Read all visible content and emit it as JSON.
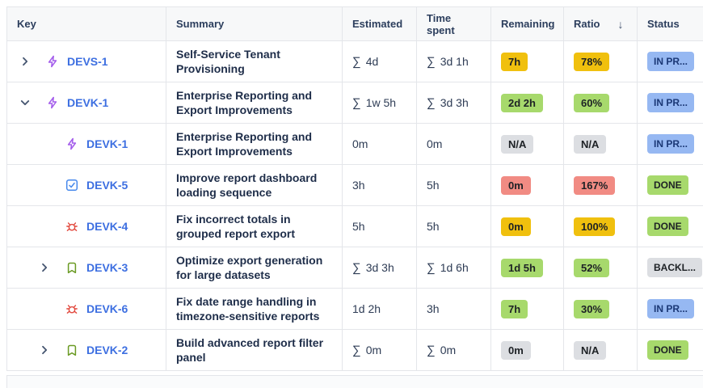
{
  "glyphs": {
    "sum": "∑",
    "sort_desc": "↓"
  },
  "palette": {
    "link": "#3D6FE1",
    "badges": {
      "yellow": {
        "bg": "#F0C00E",
        "fg": "#1D2125"
      },
      "green": {
        "bg": "#A7D96C",
        "fg": "#1D2125"
      },
      "red": {
        "bg": "#F18B83",
        "fg": "#1D2125"
      },
      "gray": {
        "bg": "#DCDEE2",
        "fg": "#1D2125"
      },
      "blue": {
        "bg": "#96B8F2",
        "fg": "#1B3876"
      }
    },
    "icons": {
      "epic": "#A35CEB",
      "task": "#4688EC",
      "bug": "#E2483D",
      "story": "#6A9A23",
      "chevron": "#44546F"
    }
  },
  "table": {
    "columns": [
      {
        "label": "Key"
      },
      {
        "label": "Summary"
      },
      {
        "label": "Estimated"
      },
      {
        "label": "Time spent"
      },
      {
        "label": "Remaining"
      },
      {
        "label": "Ratio",
        "sorted": "desc"
      },
      {
        "label": "Status"
      }
    ],
    "rows": [
      {
        "level": 0,
        "toggle": "collapsed",
        "type": "epic",
        "key": "DEVS-1",
        "summary": "Self-Service Tenant Provisioning",
        "estimated": {
          "sum": true,
          "value": "4d"
        },
        "spent": {
          "sum": true,
          "value": "3d 1h"
        },
        "remaining": {
          "text": "7h",
          "color": "yellow"
        },
        "ratio": {
          "text": "78%",
          "color": "yellow"
        },
        "status": {
          "text": "IN PR...",
          "color": "blue"
        }
      },
      {
        "level": 0,
        "toggle": "expanded",
        "type": "epic",
        "key": "DEVK-1",
        "summary": "Enterprise Reporting and Export Improvements",
        "estimated": {
          "sum": true,
          "value": "1w 5h"
        },
        "spent": {
          "sum": true,
          "value": "3d 3h"
        },
        "remaining": {
          "text": "2d 2h",
          "color": "green"
        },
        "ratio": {
          "text": "60%",
          "color": "green"
        },
        "status": {
          "text": "IN PR...",
          "color": "blue"
        }
      },
      {
        "level": 1,
        "toggle": null,
        "type": "epic",
        "key": "DEVK-1",
        "summary": "Enterprise Reporting and Export Improvements",
        "estimated": {
          "sum": false,
          "value": "0m"
        },
        "spent": {
          "sum": false,
          "value": "0m"
        },
        "remaining": {
          "text": "N/A",
          "color": "gray"
        },
        "ratio": {
          "text": "N/A",
          "color": "gray"
        },
        "status": {
          "text": "IN PR...",
          "color": "blue"
        }
      },
      {
        "level": 1,
        "toggle": null,
        "type": "task",
        "key": "DEVK-5",
        "summary": "Improve report dashboard loading sequence",
        "estimated": {
          "sum": false,
          "value": "3h"
        },
        "spent": {
          "sum": false,
          "value": "5h"
        },
        "remaining": {
          "text": "0m",
          "color": "red"
        },
        "ratio": {
          "text": "167%",
          "color": "red"
        },
        "status": {
          "text": "DONE",
          "color": "green"
        }
      },
      {
        "level": 1,
        "toggle": null,
        "type": "bug",
        "key": "DEVK-4",
        "summary": "Fix incorrect totals in grouped report export",
        "estimated": {
          "sum": false,
          "value": "5h"
        },
        "spent": {
          "sum": false,
          "value": "5h"
        },
        "remaining": {
          "text": "0m",
          "color": "yellow"
        },
        "ratio": {
          "text": "100%",
          "color": "yellow"
        },
        "status": {
          "text": "DONE",
          "color": "green"
        }
      },
      {
        "level": 1,
        "toggle": "collapsed",
        "type": "story",
        "key": "DEVK-3",
        "summary": "Optimize export generation for large datasets",
        "estimated": {
          "sum": true,
          "value": "3d 3h"
        },
        "spent": {
          "sum": true,
          "value": "1d 6h"
        },
        "remaining": {
          "text": "1d 5h",
          "color": "green"
        },
        "ratio": {
          "text": "52%",
          "color": "green"
        },
        "status": {
          "text": "BACKL...",
          "color": "gray"
        }
      },
      {
        "level": 1,
        "toggle": null,
        "type": "bug",
        "key": "DEVK-6",
        "summary": "Fix date range handling in timezone-sensitive reports",
        "estimated": {
          "sum": false,
          "value": "1d 2h"
        },
        "spent": {
          "sum": false,
          "value": "3h"
        },
        "remaining": {
          "text": "7h",
          "color": "green"
        },
        "ratio": {
          "text": "30%",
          "color": "green"
        },
        "status": {
          "text": "IN PR...",
          "color": "blue"
        }
      },
      {
        "level": 1,
        "toggle": "collapsed",
        "type": "story",
        "key": "DEVK-2",
        "summary": "Build advanced report filter panel",
        "estimated": {
          "sum": true,
          "value": "0m"
        },
        "spent": {
          "sum": true,
          "value": "0m"
        },
        "remaining": {
          "text": "0m",
          "color": "gray"
        },
        "ratio": {
          "text": "N/A",
          "color": "gray"
        },
        "status": {
          "text": "DONE",
          "color": "green"
        }
      }
    ]
  }
}
